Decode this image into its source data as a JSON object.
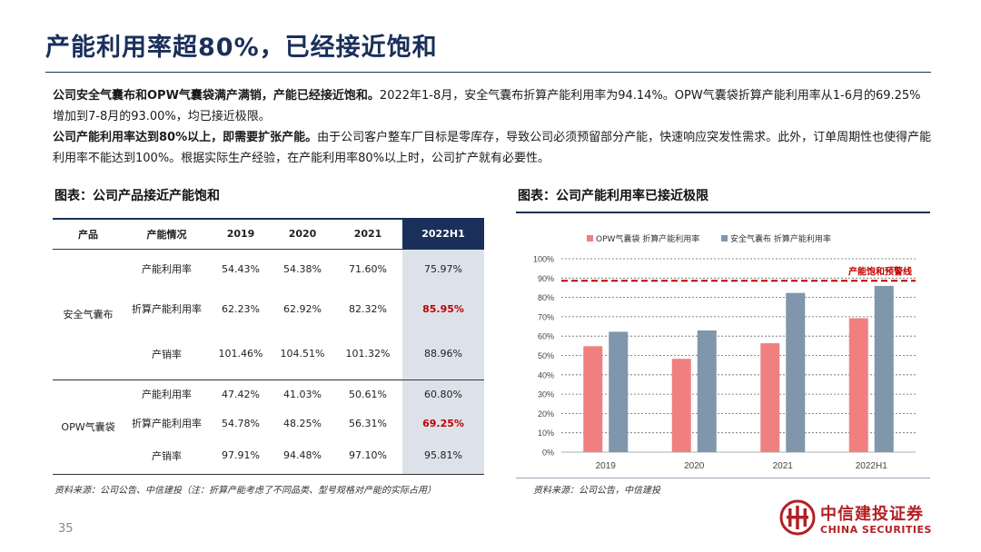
{
  "title": "产能利用率超80%，已经接近饱和",
  "intro": {
    "p1_bold": "公司安全气囊布和OPW气囊袋满产满销，产能已经接近饱和。",
    "p1_rest": "2022年1-8月，安全气囊布折算产能利用率为94.14%。OPW气囊袋折算产能利用率从1-6月的69.25%增加到7-8月的93.00%，均已接近极限。",
    "p2_bold": "公司产能利用率达到80%以上，即需要扩张产能。",
    "p2_rest": "由于公司客户整车厂目标是零库存，导致公司必须预留部分产能，快速响应突发性需求。此外，订单周期性也使得产能利用率不能达到100%。根据实际生产经验，在产能利用率80%以上时，公司扩产就有必要性。"
  },
  "table_figure": {
    "title": "图表：公司产品接近产能饱和",
    "headers": [
      "产品",
      "产能情况",
      "2019",
      "2020",
      "2021",
      "2022H1"
    ],
    "groups": [
      {
        "product": "安全气囊布",
        "rows": [
          {
            "metric": "产能利用率",
            "values": [
              "54.43%",
              "54.38%",
              "71.60%",
              "75.97%"
            ]
          },
          {
            "metric": "折算产能利用率",
            "values": [
              "62.23%",
              "62.92%",
              "82.32%",
              "85.95%"
            ]
          },
          {
            "metric": "产销率",
            "values": [
              "101.46%",
              "104.51%",
              "101.32%",
              "88.96%"
            ]
          }
        ]
      },
      {
        "product": "OPW气囊袋",
        "rows": [
          {
            "metric": "产能利用率",
            "values": [
              "47.42%",
              "41.03%",
              "50.61%",
              "60.80%"
            ]
          },
          {
            "metric": "折算产能利用率",
            "values": [
              "54.78%",
              "48.25%",
              "56.31%",
              "69.25%"
            ]
          },
          {
            "metric": "产销率",
            "values": [
              "97.91%",
              "94.48%",
              "97.10%",
              "95.81%"
            ]
          }
        ]
      }
    ],
    "source": "资料来源：公司公告、中信建投（注：折算产能考虑了不同品类、型号规格对产能的实际占用）"
  },
  "chart_figure": {
    "title": "图表：公司产能利用率已接近极限",
    "source": "资料来源：公司公告，中信建投"
  },
  "chart_data": {
    "type": "bar",
    "categories": [
      "2019",
      "2020",
      "2021",
      "2022H1"
    ],
    "series": [
      {
        "name": "OPW气囊袋 折算产能利用率",
        "values": [
          54.78,
          48.25,
          56.31,
          69.25
        ],
        "color": "#f08080"
      },
      {
        "name": "安全气囊布 折算产能利用率",
        "values": [
          62.23,
          62.92,
          82.32,
          85.95
        ],
        "color": "#7f96ac"
      }
    ],
    "ylim": [
      0,
      100
    ],
    "y_ticks": [
      "0%",
      "10%",
      "20%",
      "30%",
      "40%",
      "50%",
      "60%",
      "70%",
      "80%",
      "90%",
      "100%"
    ],
    "grid": true,
    "legend": "top",
    "threshold": {
      "value": 90,
      "label": "产能饱和预警线",
      "color": "#c00000"
    }
  },
  "page_number": "35",
  "logo": {
    "name_cn": "中信建投证券",
    "name_en": "CHINA SECURITIES",
    "color": "#b41f24"
  },
  "colors": {
    "title": "#1a2f5a",
    "highlight_header": "#1a2f5a",
    "highlight_red": "#c00000"
  }
}
